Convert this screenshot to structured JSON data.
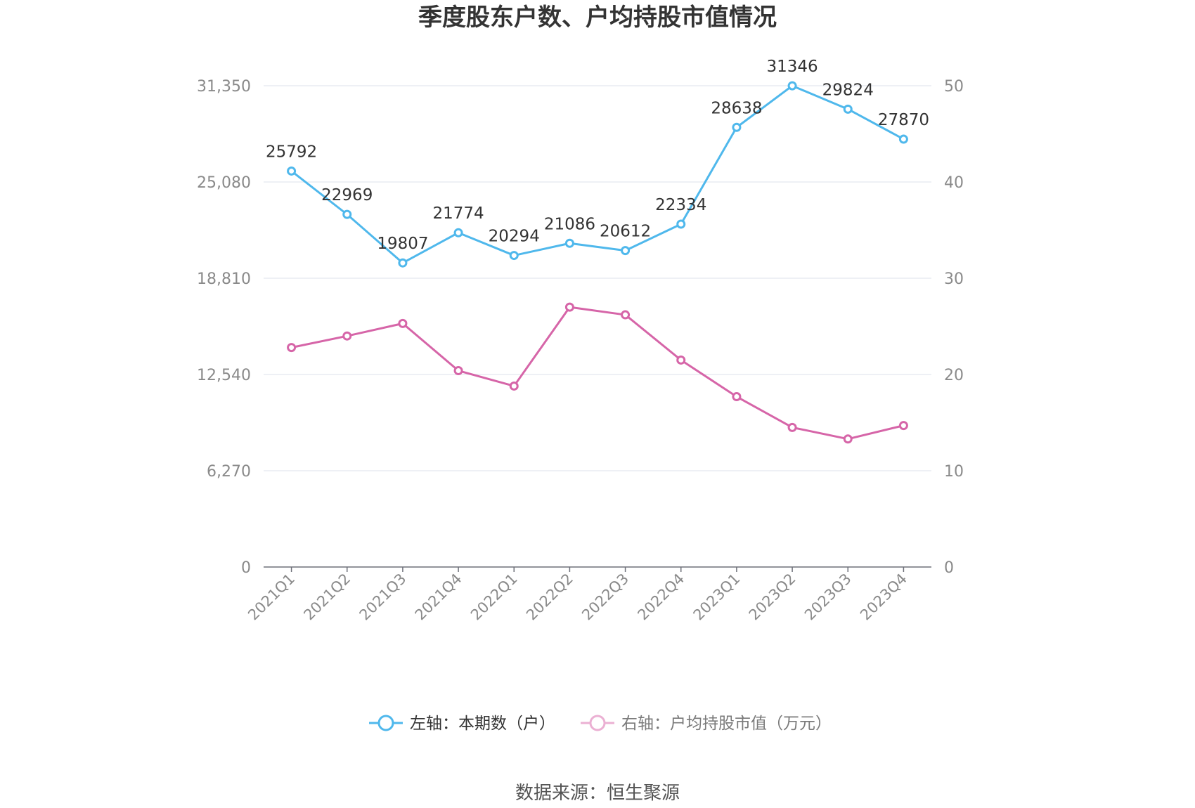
{
  "chart_data": {
    "type": "line",
    "title": "季度股东户数、户均持股市值情况",
    "categories": [
      "2021Q1",
      "2021Q2",
      "2021Q3",
      "2021Q4",
      "2022Q1",
      "2022Q2",
      "2022Q3",
      "2022Q4",
      "2023Q1",
      "2023Q2",
      "2023Q3",
      "2023Q4"
    ],
    "left_axis": {
      "ylim": [
        0,
        31350
      ],
      "ticks": [
        0,
        6270,
        12540,
        18810,
        25080,
        31350
      ],
      "tick_labels": [
        "0",
        "6,270",
        "12,540",
        "18,810",
        "25,080",
        "31,350"
      ]
    },
    "right_axis": {
      "ylim": [
        0,
        50
      ],
      "ticks": [
        0,
        10,
        20,
        30,
        40,
        50
      ],
      "tick_labels": [
        "0",
        "10",
        "20",
        "30",
        "40",
        "50"
      ]
    },
    "grid": true,
    "legend_position": "bottom-center",
    "series": [
      {
        "name": "左轴：本期数（户）",
        "axis": "left",
        "color": "#4fb8ec",
        "values": [
          25792,
          22969,
          19807,
          21774,
          20294,
          21086,
          20612,
          22334,
          28638,
          31346,
          29824,
          27870
        ],
        "data_labels": [
          "25792",
          "22969",
          "19807",
          "21774",
          "20294",
          "21086",
          "20612",
          "22334",
          "28638",
          "31346",
          "29824",
          "27870"
        ]
      },
      {
        "name": "右轴：户均持股市值（万元）",
        "axis": "right",
        "color": "#d665a8",
        "values": [
          22.8,
          24.0,
          25.3,
          20.4,
          18.8,
          27.0,
          26.2,
          21.5,
          17.7,
          14.5,
          13.3,
          14.7
        ]
      }
    ],
    "source": "数据来源：恒生聚源"
  }
}
